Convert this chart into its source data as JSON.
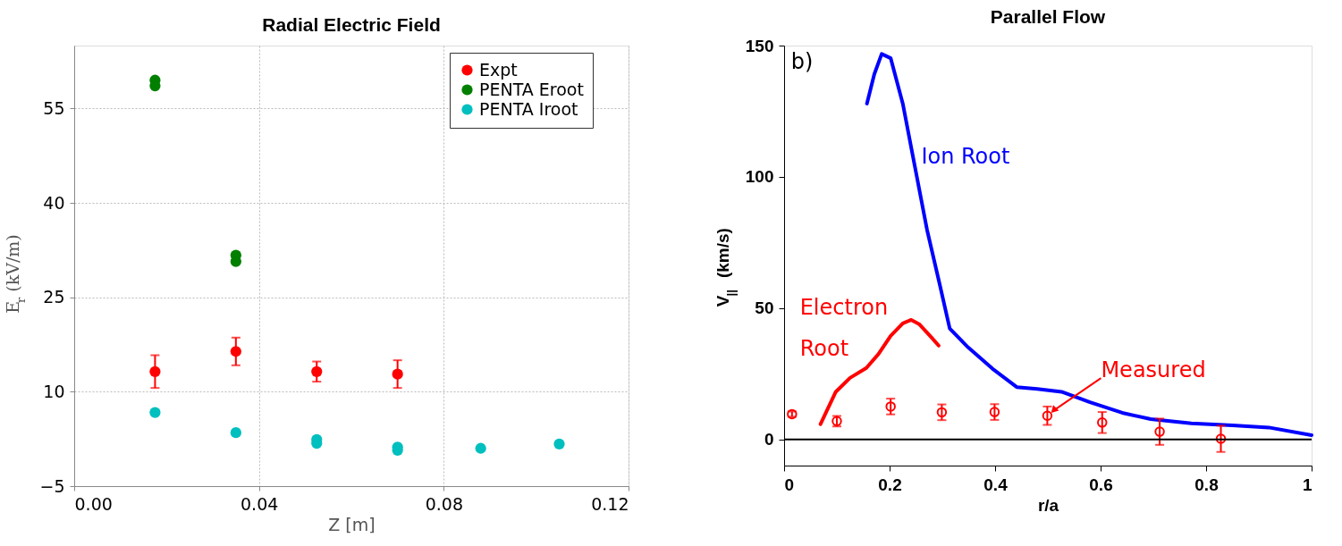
{
  "chart_data": [
    {
      "type": "scatter",
      "title": "Radial Electric Field",
      "xlabel": "Z [m]",
      "ylabel": "E$_{r}$ (kV/m)",
      "xlim": [
        0.0,
        0.12
      ],
      "xticks": [
        {
          "value": 0,
          "label": "0.00"
        },
        0.04,
        0.08,
        {
          "value": 0.12,
          "label": "0.12"
        }
      ],
      "ylim": [
        -5,
        65
      ],
      "yticks": [
        -5,
        10,
        25,
        40,
        55
      ],
      "grid": true,
      "legend": "top right",
      "marker": "circle",
      "series": [
        {
          "name": "Expt",
          "color": "#ff0000",
          "x": [
            0.0175,
            0.035,
            0.0525,
            0.07
          ],
          "values": [
            13.2,
            16.4,
            13.2,
            12.8
          ],
          "errors": [
            2.6,
            2.2,
            1.6,
            2.2
          ]
        },
        {
          "name": "PENTA Eroot",
          "color": "#007f00",
          "x": [
            0.0175,
            0.0175,
            0.035,
            0.035
          ],
          "values": [
            59.5,
            58.6,
            31.7,
            30.7
          ]
        },
        {
          "name": "PENTA Iroot",
          "color": "#00bfbf",
          "x": [
            0.0175,
            0.035,
            0.0525,
            0.0525,
            0.07,
            0.07,
            0.088,
            0.105
          ],
          "values": [
            6.7,
            3.5,
            2.4,
            1.8,
            1.2,
            0.7,
            1.0,
            1.7
          ]
        }
      ]
    },
    {
      "type": "line",
      "title": "Parallel Flow",
      "xlabel": "r/a",
      "ylabel": "V$_{||}$ (km/s)",
      "xlim": [
        0,
        1
      ],
      "xticks": [
        0,
        0.2,
        0.4,
        0.6,
        0.8,
        1
      ],
      "ylim": [
        -10,
        150
      ],
      "yticks": [
        0,
        50,
        100,
        150
      ],
      "grid": false,
      "legend": false,
      "ref_lines": [
        {
          "axis": "y",
          "value": 0,
          "color": "#000000"
        }
      ],
      "annotations": [
        "Ion Root",
        "Electron Root",
        {
          "text": "Measured",
          "x": 0.499,
          "y": 9.0
        },
        "b)"
      ],
      "series": [
        {
          "type": "line",
          "color": "#0000ff",
          "x": [
            0.157,
            0.171,
            0.185,
            0.202,
            0.225,
            0.248,
            0.271,
            0.295,
            0.314,
            0.349,
            0.395,
            0.441,
            0.48,
            0.526,
            0.58,
            0.641,
            0.695,
            0.772,
            0.85,
            0.919,
            1.0
          ],
          "values": [
            127.9,
            139.1,
            146.8,
            145.2,
            127.9,
            103.8,
            79.8,
            59.0,
            42.2,
            35.0,
            26.9,
            19.9,
            19.2,
            18.1,
            14.1,
            10.1,
            7.7,
            6.1,
            5.3,
            4.5,
            1.6
          ]
        },
        {
          "type": "line",
          "color": "#ff0000",
          "x": [
            0.069,
            0.098,
            0.125,
            0.156,
            0.179,
            0.202,
            0.225,
            0.241,
            0.256,
            0.279,
            0.293
          ],
          "values": [
            5.8,
            18.1,
            23.4,
            27.2,
            32.5,
            39.4,
            44.2,
            45.5,
            43.9,
            38.9,
            35.7
          ]
        },
        {
          "type": "scatter",
          "color": "#ff0000",
          "x": [
            0.015,
            0.1,
            0.202,
            0.299,
            0.399,
            0.499,
            0.603,
            0.712,
            0.828
          ],
          "values": [
            9.6,
            6.9,
            12.5,
            10.3,
            10.4,
            9.0,
            6.4,
            2.9,
            0.2
          ],
          "errors": [
            1,
            2,
            3,
            3,
            3,
            3.5,
            4,
            5,
            5
          ]
        }
      ]
    }
  ]
}
